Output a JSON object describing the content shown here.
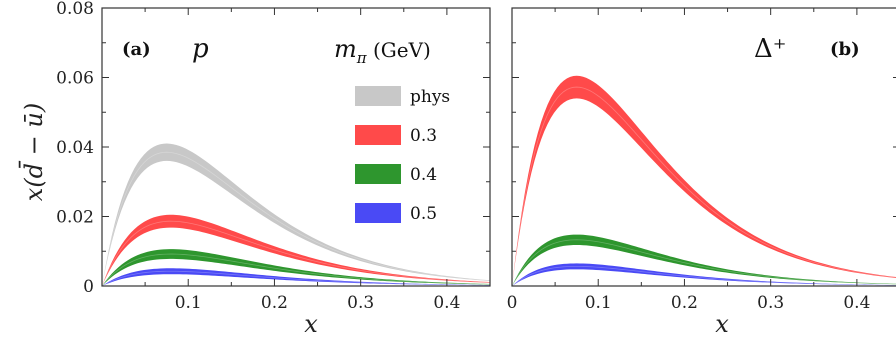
{
  "chart_data": [
    {
      "panel": "left",
      "type": "area",
      "panel_tag": "(a)",
      "particle_label": "p",
      "xlabel": "x",
      "ylabel": "x(d̄ − ū)",
      "xlim": [
        0,
        0.45
      ],
      "ylim": [
        0,
        0.08
      ],
      "x_ticks": [
        0.1,
        0.2,
        0.3,
        0.4
      ],
      "x_tick_labels": [
        "0.1",
        "0.2",
        "0.3",
        "0.4"
      ],
      "y_ticks": [
        0,
        0.02,
        0.04,
        0.06,
        0.08
      ],
      "y_tick_labels": [
        "0",
        "0.02",
        "0.04",
        "0.06",
        "0.08"
      ],
      "legend": {
        "title_symbol": "m",
        "title_sub": "π",
        "title_unit": " (GeV)",
        "position": "top-right"
      },
      "series": [
        {
          "name": "phys",
          "color": "#c8c8c8",
          "peak_x": 0.075,
          "peak_lower": 0.036,
          "peak_upper": 0.041
        },
        {
          "name": "0.3",
          "color": "#ff4a4a",
          "peak_x": 0.08,
          "peak_lower": 0.0168,
          "peak_upper": 0.0205
        },
        {
          "name": "0.4",
          "color": "#2e962e",
          "peak_x": 0.08,
          "peak_lower": 0.0078,
          "peak_upper": 0.0106
        },
        {
          "name": "0.5",
          "color": "#4a4af5",
          "peak_x": 0.08,
          "peak_lower": 0.0034,
          "peak_upper": 0.0051
        }
      ]
    },
    {
      "panel": "right",
      "type": "area",
      "panel_tag": "(b)",
      "particle_label": "Δ⁺",
      "xlabel": "x",
      "xlim": [
        0,
        0.45
      ],
      "ylim": [
        0,
        0.08
      ],
      "x_ticks": [
        0,
        0.1,
        0.2,
        0.3,
        0.4
      ],
      "x_tick_labels": [
        "0",
        "0.1",
        "0.2",
        "0.3",
        "0.4"
      ],
      "y_ticks": [
        0,
        0.02,
        0.04,
        0.06,
        0.08
      ],
      "series": [
        {
          "name": "0.3",
          "color": "#ff4a4a",
          "peak_x": 0.075,
          "peak_lower": 0.054,
          "peak_upper": 0.0605
        },
        {
          "name": "0.4",
          "color": "#2e962e",
          "peak_x": 0.075,
          "peak_lower": 0.0118,
          "peak_upper": 0.0148
        },
        {
          "name": "0.5",
          "color": "#4a4af5",
          "peak_x": 0.075,
          "peak_lower": 0.0048,
          "peak_upper": 0.0065
        }
      ]
    }
  ]
}
